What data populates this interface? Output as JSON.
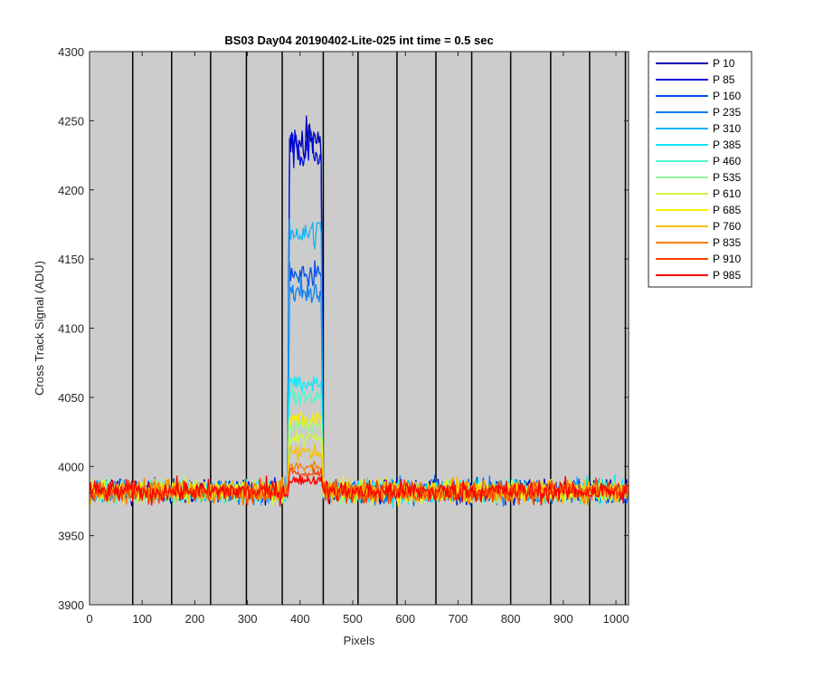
{
  "chart_data": {
    "type": "line",
    "title": "BS03 Day04 20190402-Lite-025 int time = 0.5 sec",
    "xlabel": "Pixels",
    "ylabel": "Cross Track Signal (ADU)",
    "xlim": [
      0,
      1024
    ],
    "ylim": [
      3900,
      4300
    ],
    "xticks": [
      0,
      100,
      200,
      300,
      400,
      500,
      600,
      700,
      800,
      900,
      1000
    ],
    "yticks": [
      3900,
      3950,
      4000,
      4050,
      4100,
      4150,
      4200,
      4250,
      4300
    ],
    "background_color": "#cccccc",
    "grid": false,
    "vertical_lines_x": [
      82,
      156,
      230,
      298,
      366,
      444,
      510,
      584,
      658,
      726,
      800,
      876,
      950,
      1018
    ],
    "legend_position": "outside-top-right",
    "baseline_mean": 3982,
    "noise_range": [
      3945,
      4015
    ],
    "peak_x_range": [
      380,
      440
    ],
    "series": [
      {
        "name": "P 10",
        "color": "#0000b4",
        "peak_level": 4235
      },
      {
        "name": "P 85",
        "color": "#0010e0",
        "peak_level": 4230
      },
      {
        "name": "P 160",
        "color": "#0050e8",
        "peak_level": 4140
      },
      {
        "name": "P 235",
        "color": "#1080f0",
        "peak_level": 4125
      },
      {
        "name": "P 310",
        "color": "#10b4f8",
        "peak_level": 4170
      },
      {
        "name": "P 385",
        "color": "#10e8f8",
        "peak_level": 4060
      },
      {
        "name": "P 460",
        "color": "#50f8d0",
        "peak_level": 4050
      },
      {
        "name": "P 535",
        "color": "#90f8a0",
        "peak_level": 4030
      },
      {
        "name": "P 610",
        "color": "#d0f840",
        "peak_level": 4020
      },
      {
        "name": "P 685",
        "color": "#f8f000",
        "peak_level": 4035
      },
      {
        "name": "P 760",
        "color": "#f8c000",
        "peak_level": 4010
      },
      {
        "name": "P 835",
        "color": "#f88000",
        "peak_level": 4000
      },
      {
        "name": "P 910",
        "color": "#f84000",
        "peak_level": 3995
      },
      {
        "name": "P 985",
        "color": "#f80000",
        "peak_level": 3990
      }
    ]
  }
}
